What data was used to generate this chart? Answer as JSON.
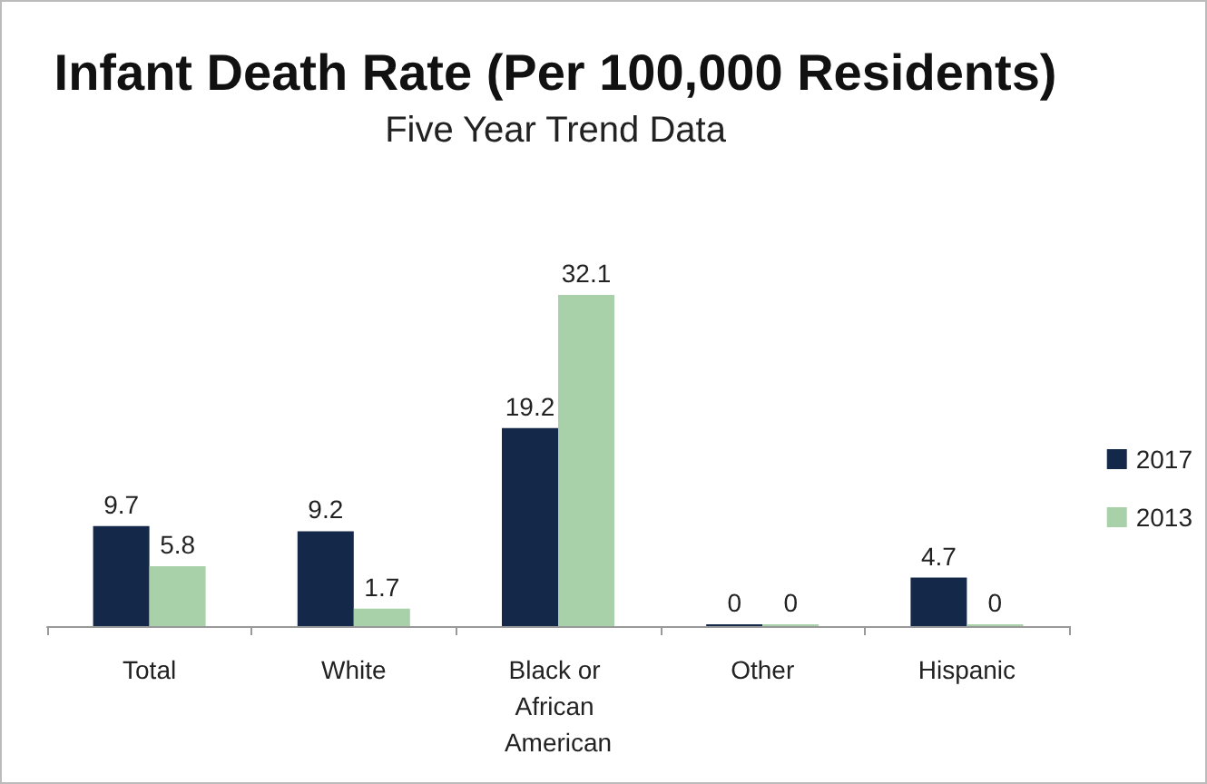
{
  "chart_data": {
    "type": "bar",
    "title": "Infant Death Rate (Per 100,000 Residents)",
    "subtitle": "Five Year Trend Data",
    "categories": [
      "Total",
      "White",
      "Black or African American",
      "Other",
      "Hispanic"
    ],
    "series": [
      {
        "name": "2017",
        "color": "#14294a",
        "values": [
          9.7,
          9.2,
          19.2,
          0,
          4.7
        ]
      },
      {
        "name": "2013",
        "color": "#a9d1a9",
        "values": [
          5.8,
          1.7,
          32.1,
          0,
          0
        ]
      }
    ],
    "data_labels": true,
    "legend": "right"
  }
}
